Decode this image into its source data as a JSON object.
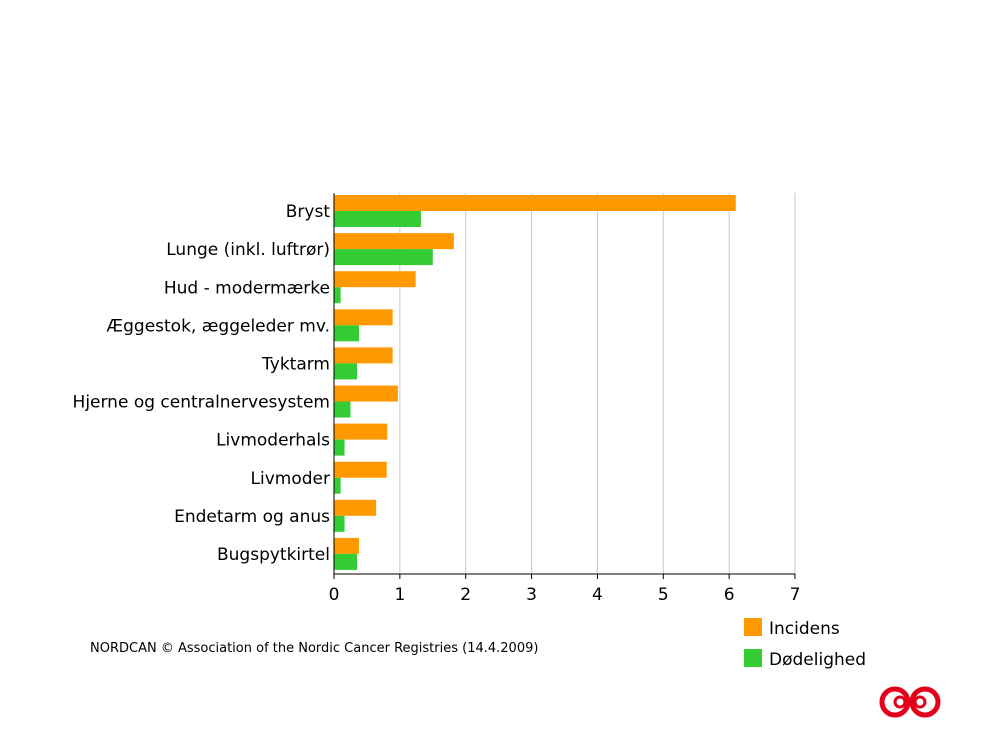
{
  "source_note": "NORDCAN © Association of the Nordic Cancer Registries (14.4.2009)",
  "logo_icon": "nordcan-infinity-logo",
  "chart_data": {
    "type": "bar",
    "orientation": "horizontal",
    "categories": [
      "Bryst",
      "Lunge (inkl. luftrør)",
      "Hud - modermærke",
      "Æggestok, æggeleder mv.",
      "Tyktarm",
      "Hjerne og centralnervesystem",
      "Livmoderhals",
      "Livmoder",
      "Endetarm og anus",
      "Bugspytkirtel"
    ],
    "series": [
      {
        "name": "Incidens",
        "color": "#ff9900",
        "values": [
          6.1,
          1.82,
          1.24,
          0.89,
          0.89,
          0.97,
          0.81,
          0.8,
          0.64,
          0.38
        ]
      },
      {
        "name": "Dødelighed",
        "color": "#33cc33",
        "values": [
          1.32,
          1.5,
          0.1,
          0.38,
          0.35,
          0.25,
          0.16,
          0.1,
          0.16,
          0.35
        ]
      }
    ],
    "x_ticks": [
      "0",
      "1",
      "2",
      "3",
      "4",
      "5",
      "6",
      "7"
    ],
    "xlim": [
      0,
      7
    ],
    "grid": true,
    "legend_position": "bottom-right",
    "title": "",
    "xlabel": "",
    "ylabel": ""
  }
}
